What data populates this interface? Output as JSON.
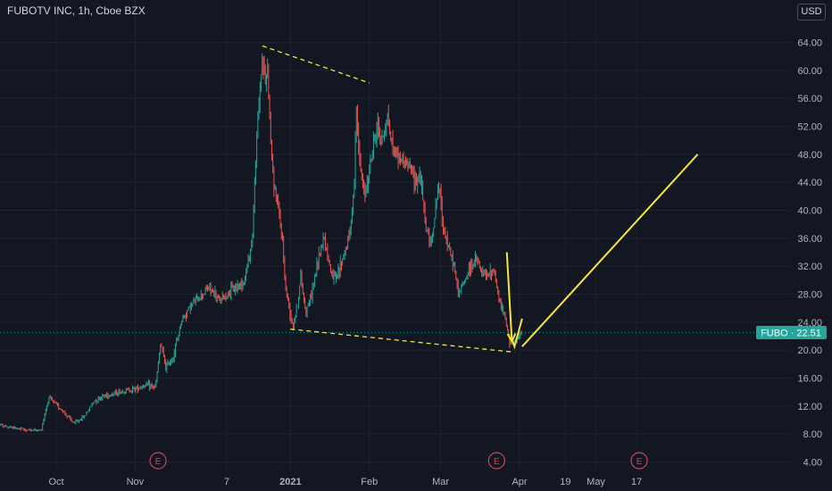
{
  "header": {
    "title": "FUBOTV INC, 1h, Cboe BZX",
    "currency": "USD"
  },
  "colors": {
    "background": "#131722",
    "grid": "#1f2330",
    "text": "#b2b5be",
    "up": "#26a69a",
    "down": "#ef5350",
    "drawing": "#f5e642",
    "price_tag": "#26a69a",
    "earnings": "#c8455a"
  },
  "chart_data": {
    "type": "candlestick",
    "symbol": "FUBO",
    "interval": "1h",
    "exchange": "Cboe BZX",
    "last_price": 22.51,
    "last_price_label": "FUBO · 22.51",
    "y_axis": {
      "ticks": [
        "4.00",
        "8.00",
        "12.00",
        "16.00",
        "20.00",
        "24.00",
        "28.00",
        "32.00",
        "36.00",
        "40.00",
        "44.00",
        "48.00",
        "52.00",
        "56.00",
        "60.00",
        "64.00"
      ],
      "ylim": [
        1.5,
        67
      ]
    },
    "x_axis": {
      "ticks": [
        {
          "label": "Oct",
          "date": "2020-10-01"
        },
        {
          "label": "Nov",
          "date": "2020-11-01"
        },
        {
          "label": "7",
          "date": "2020-12-07"
        },
        {
          "label": "2021",
          "date": "2021-01-01",
          "bold": true
        },
        {
          "label": "Feb",
          "date": "2021-02-01"
        },
        {
          "label": "Mar",
          "date": "2021-03-01"
        },
        {
          "label": "Apr",
          "date": "2021-04-01"
        },
        {
          "label": "19",
          "date": "2021-04-19"
        },
        {
          "label": "May",
          "date": "2021-05-01"
        },
        {
          "label": "17",
          "date": "2021-05-17"
        }
      ]
    },
    "earnings_markers": [
      {
        "label": "E",
        "date": "2020-11-10"
      },
      {
        "label": "E",
        "date": "2021-03-23"
      },
      {
        "label": "E",
        "date": "2021-05-18"
      }
    ],
    "price_path": [
      [
        "2020-09-05",
        9.5
      ],
      [
        "2020-09-12",
        9.0
      ],
      [
        "2020-09-19",
        8.6
      ],
      [
        "2020-09-25",
        8.5
      ],
      [
        "2020-09-28",
        13.2
      ],
      [
        "2020-10-03",
        11.5
      ],
      [
        "2020-10-08",
        9.5
      ],
      [
        "2020-10-12",
        10.5
      ],
      [
        "2020-10-16",
        12.8
      ],
      [
        "2020-10-20",
        13.5
      ],
      [
        "2020-10-24",
        13.8
      ],
      [
        "2020-10-28",
        14.2
      ],
      [
        "2020-11-01",
        14.5
      ],
      [
        "2020-11-05",
        15.0
      ],
      [
        "2020-11-09",
        14.7
      ],
      [
        "2020-11-11",
        21.0
      ],
      [
        "2020-11-13",
        17.5
      ],
      [
        "2020-11-16",
        19.0
      ],
      [
        "2020-11-19",
        24.0
      ],
      [
        "2020-11-22",
        26.0
      ],
      [
        "2020-11-26",
        27.5
      ],
      [
        "2020-11-30",
        29.0
      ],
      [
        "2020-12-04",
        27.0
      ],
      [
        "2020-12-09",
        28.5
      ],
      [
        "2020-12-14",
        30.0
      ],
      [
        "2020-12-17",
        36.0
      ],
      [
        "2020-12-19",
        52.0
      ],
      [
        "2020-12-21",
        62.5
      ],
      [
        "2020-12-22",
        58.0
      ],
      [
        "2020-12-23",
        60.5
      ],
      [
        "2020-12-24",
        52.0
      ],
      [
        "2020-12-25",
        45.0
      ],
      [
        "2020-12-28",
        38.0
      ],
      [
        "2020-12-29",
        35.0
      ],
      [
        "2020-12-30",
        29.0
      ],
      [
        "2020-12-31",
        27.0
      ],
      [
        "2021-01-02",
        23.5
      ],
      [
        "2021-01-04",
        27.0
      ],
      [
        "2021-01-05",
        30.5
      ],
      [
        "2021-01-07",
        25.5
      ],
      [
        "2021-01-09",
        27.5
      ],
      [
        "2021-01-12",
        33.0
      ],
      [
        "2021-01-14",
        36.5
      ],
      [
        "2021-01-17",
        31.0
      ],
      [
        "2021-01-19",
        30.0
      ],
      [
        "2021-01-21",
        32.5
      ],
      [
        "2021-01-24",
        36.0
      ],
      [
        "2021-01-26",
        43.0
      ],
      [
        "2021-01-27",
        56.0
      ],
      [
        "2021-01-28",
        47.0
      ],
      [
        "2021-01-30",
        42.0
      ],
      [
        "2021-02-02",
        48.0
      ],
      [
        "2021-02-04",
        52.0
      ],
      [
        "2021-02-06",
        50.0
      ],
      [
        "2021-02-08",
        53.5
      ],
      [
        "2021-02-10",
        49.0
      ],
      [
        "2021-02-13",
        47.5
      ],
      [
        "2021-02-16",
        46.5
      ],
      [
        "2021-02-19",
        44.5
      ],
      [
        "2021-02-21",
        45.0
      ],
      [
        "2021-02-23",
        38.0
      ],
      [
        "2021-02-25",
        35.0
      ],
      [
        "2021-02-27",
        40.0
      ],
      [
        "2021-02-28",
        44.0
      ],
      [
        "2021-03-02",
        38.0
      ],
      [
        "2021-03-04",
        34.5
      ],
      [
        "2021-03-06",
        32.5
      ],
      [
        "2021-03-08",
        28.0
      ],
      [
        "2021-03-10",
        29.5
      ],
      [
        "2021-03-12",
        31.5
      ],
      [
        "2021-03-15",
        33.0
      ],
      [
        "2021-03-17",
        31.0
      ],
      [
        "2021-03-19",
        30.5
      ],
      [
        "2021-03-22",
        31.5
      ],
      [
        "2021-03-24",
        27.0
      ],
      [
        "2021-03-26",
        25.0
      ],
      [
        "2021-03-28",
        21.5
      ],
      [
        "2021-03-30",
        20.9
      ],
      [
        "2021-04-01",
        22.0
      ],
      [
        "2021-04-02",
        22.51
      ]
    ],
    "drawings": [
      {
        "kind": "trendline",
        "style": "dashed",
        "from": [
          "2020-12-21",
          63.5
        ],
        "to": [
          "2021-02-01",
          58.2
        ]
      },
      {
        "kind": "trendline",
        "style": "dashed",
        "from": [
          "2021-01-01",
          23.0
        ],
        "to": [
          "2021-03-30",
          19.7
        ]
      },
      {
        "kind": "arrow",
        "style": "solid",
        "from": [
          "2021-03-27",
          34.0
        ],
        "to": [
          "2021-03-29",
          21.2
        ]
      },
      {
        "kind": "polyline",
        "style": "solid",
        "points": [
          [
            "2021-03-29",
            21.5
          ],
          [
            "2021-03-30",
            20.5
          ],
          [
            "2021-04-02",
            24.5
          ]
        ]
      },
      {
        "kind": "trendline",
        "style": "solid",
        "from": [
          "2021-04-02",
          20.5
        ],
        "to": [
          "2021-06-10",
          48.0
        ]
      }
    ]
  }
}
